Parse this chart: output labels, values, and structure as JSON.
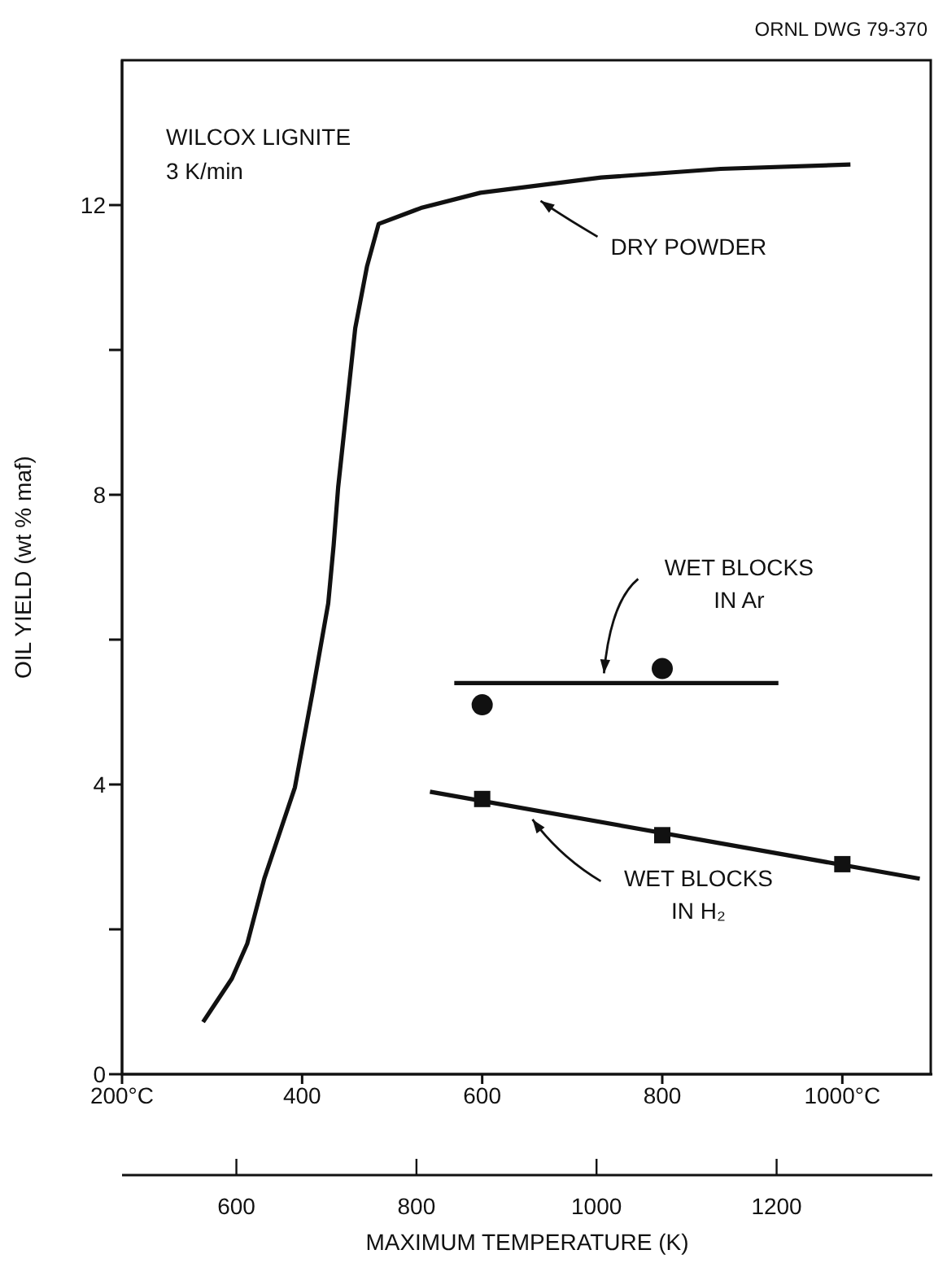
{
  "chart_data": {
    "type": "line",
    "xlabel": "MAXIMUM TEMPERATURE (K)",
    "ylabel": "OIL YIELD (wt % maf)",
    "annotations": [
      "ORNL DWG 79-370",
      "WILCOX LIGNITE",
      "3 K/min"
    ],
    "xlim": [
      200,
      1100
    ],
    "xticks": [
      {
        "value": 200,
        "label": "200°C"
      },
      400,
      600,
      800,
      {
        "value": 1000,
        "label": "1000°C"
      }
    ],
    "x2lim": [
      473,
      1373
    ],
    "x2ticks": [
      600,
      800,
      1000,
      1200
    ],
    "ylim": [
      0,
      14
    ],
    "yticks": [
      0,
      {
        "value": 2,
        "label": null
      },
      4,
      {
        "value": 6,
        "label": null
      },
      8,
      {
        "value": 10,
        "label": null
      },
      12
    ],
    "series": [
      {
        "name": "DRY POWDER",
        "color": "#111111",
        "marker": "none",
        "x": [
          290,
          322,
          339,
          358,
          392,
          412,
          429,
          435,
          440,
          459,
          472,
          485,
          532,
          598,
          732,
          865,
          1009
        ],
        "values": [
          0.72,
          1.32,
          1.8,
          2.7,
          3.96,
          5.3,
          6.5,
          7.3,
          8.1,
          10.3,
          11.15,
          11.74,
          11.96,
          12.17,
          12.38,
          12.5,
          12.56
        ]
      },
      {
        "name": "WET BLOCKS IN Ar",
        "color": "#111111",
        "marker": "none",
        "x": [
          569,
          929
        ],
        "values": [
          5.4,
          5.4
        ]
      },
      {
        "type": "scatter",
        "color": "#111111",
        "marker": "circle",
        "x": [
          600,
          800
        ],
        "values": [
          5.1,
          5.6
        ]
      },
      {
        "name": "WET BLOCKS IN H₂",
        "color": "#111111",
        "marker": "none",
        "x": [
          542,
          1086
        ],
        "values": [
          3.9,
          2.7
        ]
      },
      {
        "type": "scatter",
        "color": "#111111",
        "marker": "square",
        "x": [
          600,
          800,
          1000
        ],
        "values": [
          3.8,
          3.3,
          2.9
        ]
      }
    ]
  }
}
